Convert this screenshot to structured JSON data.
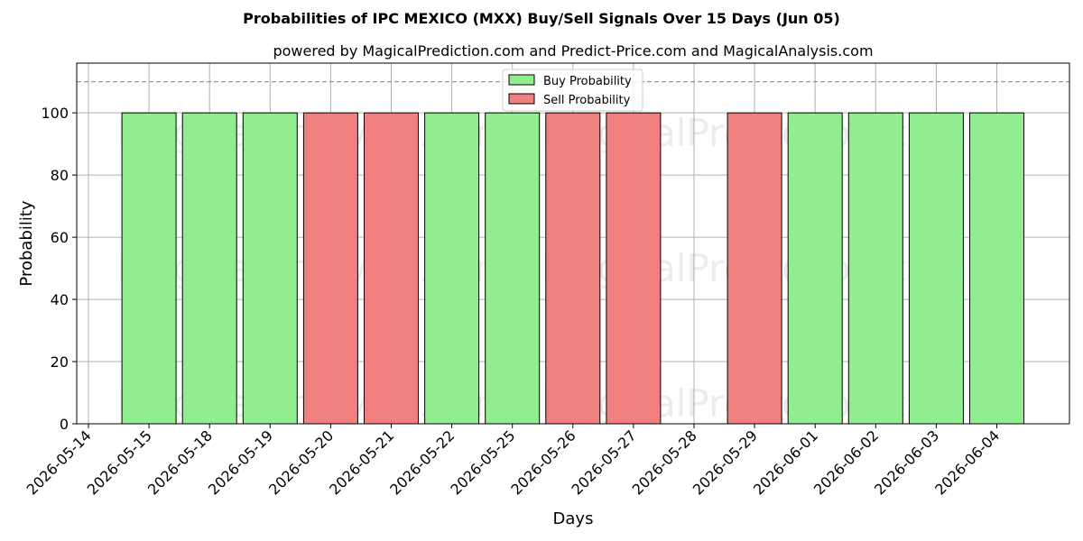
{
  "chart_data": {
    "type": "bar",
    "title": "Probabilities of IPC MEXICO (MXX) Buy/Sell Signals Over 15 Days (Jun 05)",
    "subtitle": "powered by MagicalPrediction.com and Predict-Price.com and MagicalAnalysis.com",
    "xlabel": "Days",
    "ylabel": "Probability",
    "ylim": [
      0,
      116
    ],
    "yticks": [
      0,
      20,
      40,
      60,
      80,
      100
    ],
    "x_tick_labels": [
      "2026-05-14",
      "2026-05-15",
      "2026-05-18",
      "2026-05-19",
      "2026-05-20",
      "2026-05-21",
      "2026-05-22",
      "2026-05-25",
      "2026-05-26",
      "2026-05-27",
      "2026-05-28",
      "2026-05-29",
      "2026-06-01",
      "2026-06-02",
      "2026-06-03",
      "2026-06-04"
    ],
    "bars": [
      {
        "date": "2026-05-15",
        "value": 100,
        "signal": "buy"
      },
      {
        "date": "2026-05-18",
        "value": 100,
        "signal": "buy"
      },
      {
        "date": "2026-05-19",
        "value": 100,
        "signal": "buy"
      },
      {
        "date": "2026-05-20",
        "value": 100,
        "signal": "sell"
      },
      {
        "date": "2026-05-21",
        "value": 100,
        "signal": "sell"
      },
      {
        "date": "2026-05-22",
        "value": 100,
        "signal": "buy"
      },
      {
        "date": "2026-05-25",
        "value": 100,
        "signal": "buy"
      },
      {
        "date": "2026-05-26",
        "value": 100,
        "signal": "sell"
      },
      {
        "date": "2026-05-27",
        "value": 100,
        "signal": "sell"
      },
      {
        "date": "2026-05-29",
        "value": 100,
        "signal": "sell"
      },
      {
        "date": "2026-06-01",
        "value": 100,
        "signal": "buy"
      },
      {
        "date": "2026-06-02",
        "value": 100,
        "signal": "buy"
      },
      {
        "date": "2026-06-03",
        "value": 100,
        "signal": "buy"
      },
      {
        "date": "2026-06-04",
        "value": 100,
        "signal": "buy"
      }
    ],
    "reference_line": 110,
    "legend": {
      "position": "top-center",
      "entries": [
        {
          "label": "Buy Probability",
          "signal": "buy"
        },
        {
          "label": "Sell Probability",
          "signal": "sell"
        }
      ]
    },
    "grid": true,
    "colors": {
      "buy": "#90EE90",
      "sell": "#F08080",
      "edge": "#000000",
      "grid": "#b0b0b0",
      "refline": "#808080"
    }
  },
  "watermarks": [
    "MagicalAnalysis.com",
    "MagicalPrediction.com"
  ]
}
